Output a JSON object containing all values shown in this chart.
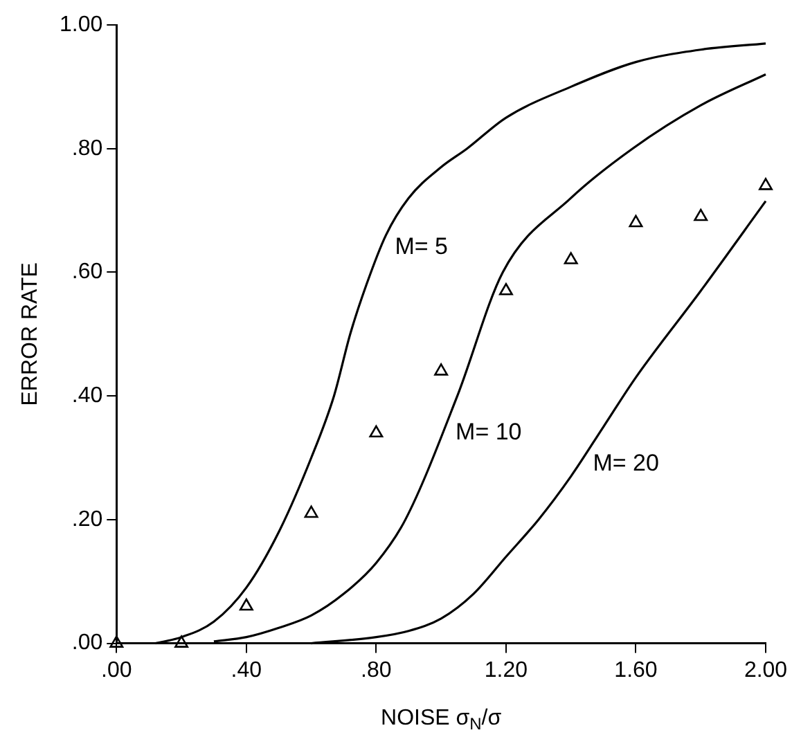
{
  "chart_data": {
    "type": "line",
    "xlabel": "NOISE σ$_{N}$/σ",
    "ylabel": "ERROR RATE",
    "xlim": [
      0,
      2
    ],
    "ylim": [
      0,
      1
    ],
    "xticks": [
      {
        "value": 0,
        "label": ".00"
      },
      {
        "value": 0.4,
        "label": ".40"
      },
      {
        "value": 0.8,
        "label": ".80"
      },
      {
        "value": 1.2,
        "label": "1.20"
      },
      {
        "value": 1.6,
        "label": "1.60"
      },
      {
        "value": 2,
        "label": "2.00"
      }
    ],
    "yticks": [
      {
        "value": 0,
        "label": ".00"
      },
      {
        "value": 0.2,
        "label": ".20"
      },
      {
        "value": 0.4,
        "label": ".40"
      },
      {
        "value": 0.6,
        "label": ".60"
      },
      {
        "value": 0.8,
        "label": ".80"
      },
      {
        "value": 1,
        "label": "1.00"
      }
    ],
    "grid": false,
    "legend": false,
    "series": [
      {
        "name": "M= 5",
        "color": "#000000",
        "marker": "none",
        "x": [
          0.12,
          0.2,
          0.3,
          0.4,
          0.5,
          0.6,
          0.67,
          0.72,
          0.77,
          0.83,
          0.9,
          1.0,
          1.08,
          1.2,
          1.4,
          1.6,
          1.8,
          2.0
        ],
        "values": [
          0,
          0.01,
          0.035,
          0.09,
          0.18,
          0.3,
          0.4,
          0.5,
          0.58,
          0.66,
          0.72,
          0.77,
          0.8,
          0.85,
          0.9,
          0.94,
          0.96,
          0.97
        ]
      },
      {
        "name": "M= 10",
        "color": "#000000",
        "marker": "none",
        "x": [
          0.3,
          0.4,
          0.5,
          0.6,
          0.7,
          0.8,
          0.89,
          1.05,
          1.19,
          1.4,
          1.59,
          1.8,
          2.0
        ],
        "values": [
          0.003,
          0.01,
          0.025,
          0.045,
          0.08,
          0.13,
          0.2,
          0.4,
          0.6,
          0.72,
          0.8,
          0.87,
          0.92
        ]
      },
      {
        "name": "M= 20",
        "color": "#000000",
        "marker": "none",
        "x": [
          0.6,
          0.8,
          0.9,
          1.0,
          1.1,
          1.2,
          1.3,
          1.4,
          1.5,
          1.6,
          1.8,
          2.0
        ],
        "values": [
          0,
          0.01,
          0.02,
          0.04,
          0.08,
          0.14,
          0.2,
          0.27,
          0.35,
          0.43,
          0.57,
          0.715
        ]
      },
      {
        "type": "scatter",
        "color": "#000000",
        "marker": "triangle",
        "x": [
          0,
          0.2,
          0.4,
          0.6,
          0.8,
          1.0,
          1.2,
          1.4,
          1.6,
          1.8,
          2.0
        ],
        "values": [
          0,
          0,
          0.06,
          0.21,
          0.34,
          0.44,
          0.57,
          0.62,
          0.68,
          0.69,
          0.74
        ]
      }
    ]
  }
}
